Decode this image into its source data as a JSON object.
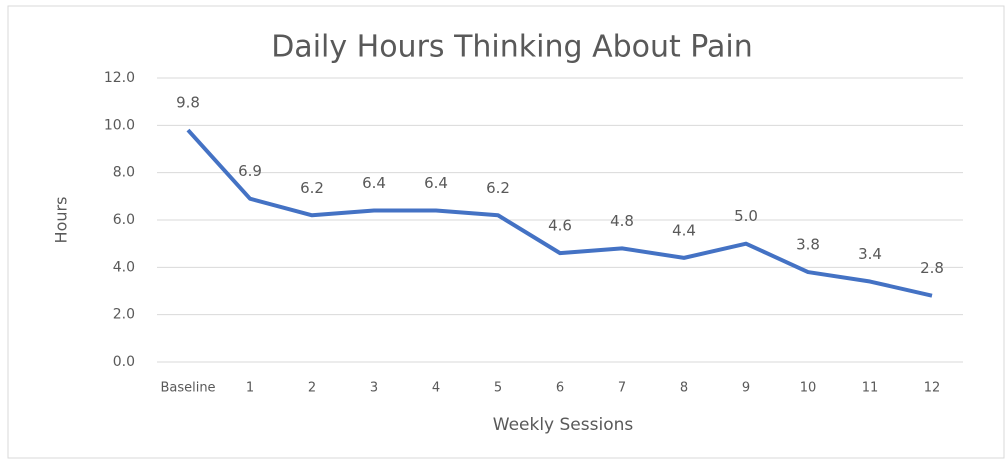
{
  "chart_data": {
    "type": "line",
    "title": "Daily Hours Thinking About Pain",
    "x_label": "Weekly Sessions",
    "y_label": "Hours",
    "categories": [
      "Baseline",
      "1",
      "2",
      "3",
      "4",
      "5",
      "6",
      "7",
      "8",
      "9",
      "10",
      "11",
      "12"
    ],
    "series": [
      {
        "name": "Hours",
        "color": "#4472c4",
        "values": [
          9.8,
          6.9,
          6.2,
          6.4,
          6.4,
          6.2,
          4.6,
          4.8,
          4.4,
          5.0,
          3.8,
          3.4,
          2.8
        ],
        "value_labels": [
          "9.8",
          "6.9",
          "6.2",
          "6.4",
          "6.4",
          "6.2",
          "4.6",
          "4.8",
          "4.4",
          "5.0",
          "3.8",
          "3.4",
          "2.8"
        ]
      }
    ],
    "ylim": [
      0,
      12
    ],
    "yticks": [
      {
        "value": 0,
        "label": "0.0"
      },
      {
        "value": 2,
        "label": "2.0"
      },
      {
        "value": 4,
        "label": "4.0"
      },
      {
        "value": 6,
        "label": "6.0"
      },
      {
        "value": 8,
        "label": "8.0"
      },
      {
        "value": 10,
        "label": "10.0"
      },
      {
        "value": 12,
        "label": "12.0"
      }
    ],
    "grid": true
  }
}
